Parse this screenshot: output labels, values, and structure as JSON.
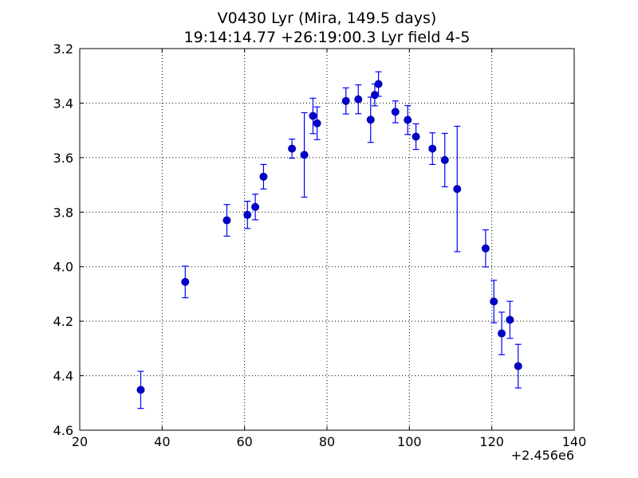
{
  "chart_data": {
    "type": "scatter",
    "title": "V0430 Lyr (Mira, 149.5 days)",
    "subtitle": "19:14:14.77 +26:19:00.3 Lyr field 4-5",
    "xlabel": "",
    "ylabel": "",
    "x_offset_label": "+2.456e6",
    "xlim": [
      20,
      140
    ],
    "ylim": [
      3.2,
      4.6
    ],
    "y_inverted": true,
    "grid": true,
    "x_ticks": [
      20,
      40,
      60,
      80,
      100,
      120,
      140
    ],
    "x_tick_labels": [
      "20",
      "40",
      "60",
      "80",
      "100",
      "120",
      "140"
    ],
    "y_ticks": [
      3.2,
      3.4,
      3.6,
      3.8,
      4.0,
      4.2,
      4.4,
      4.6
    ],
    "y_tick_labels": [
      "3.2",
      "3.4",
      "3.6",
      "3.8",
      "4.0",
      "4.2",
      "4.4",
      "4.6"
    ],
    "marker_color": "#0000cc",
    "errorbar_color": "#0000ff",
    "points": [
      {
        "x": 34.8,
        "y": 4.452,
        "err": 0.068
      },
      {
        "x": 45.6,
        "y": 4.056,
        "err": 0.058
      },
      {
        "x": 55.7,
        "y": 3.83,
        "err": 0.058
      },
      {
        "x": 60.7,
        "y": 3.81,
        "err": 0.05
      },
      {
        "x": 62.6,
        "y": 3.781,
        "err": 0.047
      },
      {
        "x": 64.6,
        "y": 3.67,
        "err": 0.045
      },
      {
        "x": 71.5,
        "y": 3.567,
        "err": 0.035
      },
      {
        "x": 74.5,
        "y": 3.59,
        "err": 0.155
      },
      {
        "x": 76.6,
        "y": 3.447,
        "err": 0.065
      },
      {
        "x": 77.6,
        "y": 3.474,
        "err": 0.06
      },
      {
        "x": 84.6,
        "y": 3.392,
        "err": 0.048
      },
      {
        "x": 87.6,
        "y": 3.386,
        "err": 0.053
      },
      {
        "x": 90.6,
        "y": 3.461,
        "err": 0.083
      },
      {
        "x": 91.6,
        "y": 3.37,
        "err": 0.04
      },
      {
        "x": 92.5,
        "y": 3.33,
        "err": 0.045
      },
      {
        "x": 96.6,
        "y": 3.432,
        "err": 0.04
      },
      {
        "x": 99.6,
        "y": 3.462,
        "err": 0.053
      },
      {
        "x": 101.6,
        "y": 3.523,
        "err": 0.047
      },
      {
        "x": 105.6,
        "y": 3.567,
        "err": 0.058
      },
      {
        "x": 108.6,
        "y": 3.609,
        "err": 0.098
      },
      {
        "x": 111.6,
        "y": 3.715,
        "err": 0.23
      },
      {
        "x": 118.5,
        "y": 3.933,
        "err": 0.068
      },
      {
        "x": 120.5,
        "y": 4.128,
        "err": 0.078
      },
      {
        "x": 122.4,
        "y": 4.245,
        "err": 0.078
      },
      {
        "x": 124.4,
        "y": 4.195,
        "err": 0.068
      },
      {
        "x": 126.4,
        "y": 4.365,
        "err": 0.08
      }
    ]
  }
}
